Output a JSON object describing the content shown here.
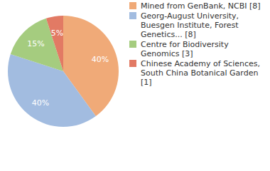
{
  "chart_data": {
    "type": "pie",
    "categories": [
      "Mined from GenBank, NCBI [8]",
      "Georg-August University, Buesgen Institute, Forest Genetics... [8]",
      "Centre for Biodiversity Genomics [3]",
      "Chinese Academy of Sciences, South China Botanical Garden [1]"
    ],
    "values": [
      40,
      40,
      15,
      5
    ],
    "value_labels": [
      "40%",
      "40%",
      "15%",
      "5%"
    ],
    "colors": [
      "#F0AA78",
      "#A2BCE0",
      "#A5CC7F",
      "#E27A64"
    ],
    "data_labels": true,
    "legend": "upper right"
  }
}
